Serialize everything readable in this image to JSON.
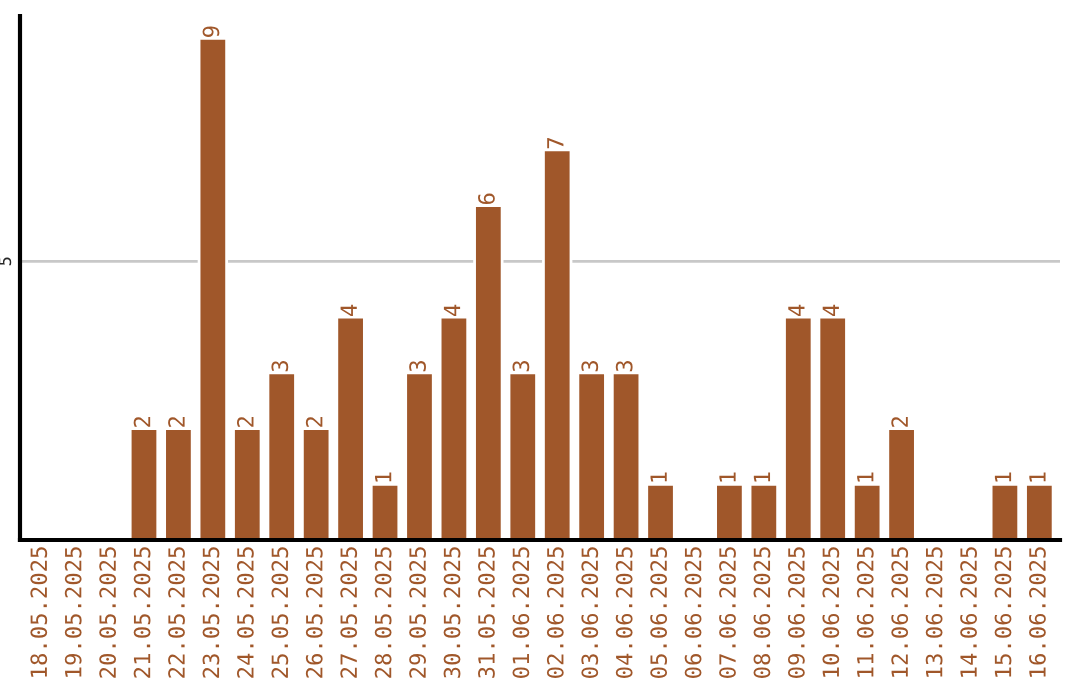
{
  "chart_data": {
    "type": "bar",
    "categories": [
      "18.05.2025",
      "19.05.2025",
      "20.05.2025",
      "21.05.2025",
      "22.05.2025",
      "23.05.2025",
      "24.05.2025",
      "25.05.2025",
      "26.05.2025",
      "27.05.2025",
      "28.05.2025",
      "29.05.2025",
      "30.05.2025",
      "31.05.2025",
      "01.06.2025",
      "02.06.2025",
      "03.06.2025",
      "04.06.2025",
      "05.06.2025",
      "06.06.2025",
      "07.06.2025",
      "08.06.2025",
      "09.06.2025",
      "10.06.2025",
      "11.06.2025",
      "12.06.2025",
      "13.06.2025",
      "14.06.2025",
      "15.06.2025",
      "16.06.2025"
    ],
    "values": [
      0,
      0,
      0,
      2,
      2,
      9,
      2,
      3,
      2,
      4,
      1,
      3,
      4,
      6,
      3,
      7,
      3,
      3,
      1,
      0,
      1,
      1,
      4,
      4,
      1,
      2,
      0,
      0,
      1,
      1
    ],
    "value_labels": [
      null,
      null,
      null,
      "2",
      "2",
      "9",
      "2",
      "3",
      "2",
      "4",
      "1",
      "3",
      "4",
      "6",
      "3",
      "7",
      "3",
      "3",
      "1",
      null,
      "1",
      "1",
      "4",
      "4",
      "1",
      "2",
      null,
      null,
      "1",
      "1"
    ],
    "color": "#a0572a",
    "ylim": [
      0,
      9.4
    ],
    "yticks": [
      5
    ],
    "grid": "y"
  }
}
